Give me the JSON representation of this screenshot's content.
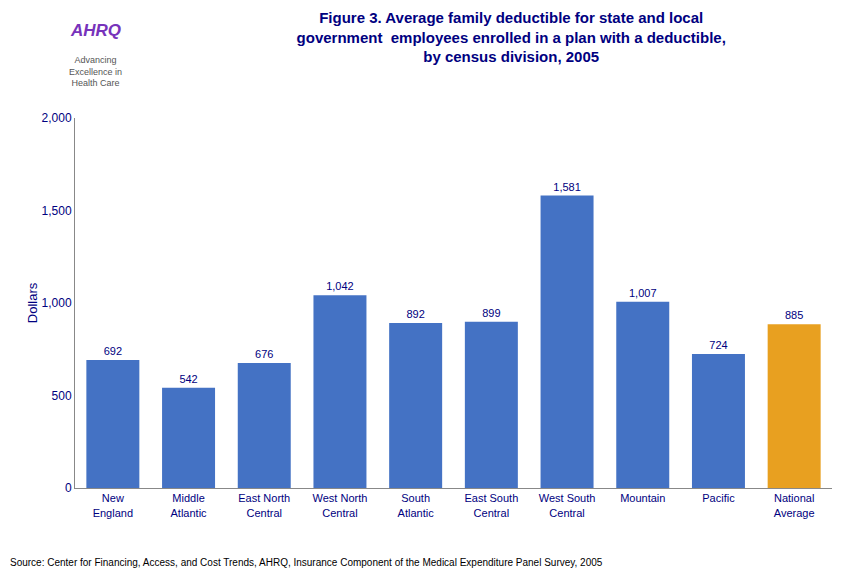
{
  "chart_data": {
    "type": "bar",
    "title": "Figure 3. Average family deductible for state and local\ngovernment  employees enrolled in a plan with a deductible,\nby census division, 2005",
    "categories": [
      "New\nEngland",
      "Middle\nAtlantic",
      "East North\nCentral",
      "West North\nCentral",
      "South\nAtlantic",
      "East South\nCentral",
      "West South\nCentral",
      "Mountain",
      "Pacific",
      "National\nAverage"
    ],
    "values": [
      692,
      542,
      676,
      1042,
      892,
      899,
      1581,
      1007,
      724,
      885
    ],
    "value_labels": [
      "692",
      "542",
      "676",
      "1,042",
      "892",
      "899",
      "1,581",
      "1,007",
      "724",
      "885"
    ],
    "data_labels": true,
    "colors": [
      "#4472C4",
      "#4472C4",
      "#4472C4",
      "#4472C4",
      "#4472C4",
      "#4472C4",
      "#4472C4",
      "#4472C4",
      "#4472C4",
      "#E8A020"
    ],
    "ylabel": "Dollars",
    "ylim": [
      0,
      2000
    ],
    "yticks": [
      0,
      500,
      {
        "value": 1000,
        "label": "1,000"
      },
      {
        "value": 1500,
        "label": "1,500"
      },
      {
        "value": 2000,
        "label": "2,000"
      }
    ],
    "grid": false,
    "annotations": [
      "Source: Center for Financing, Access, and Cost Trends, AHRQ, Insurance Component of the Medical Expenditure Panel Survey, 2005",
      "AHRQ",
      "Advancing\nExcellence in\nHealth Care"
    ]
  }
}
